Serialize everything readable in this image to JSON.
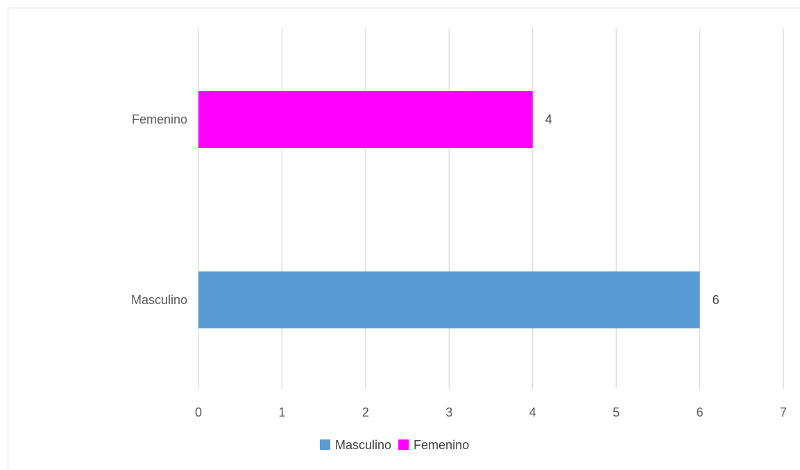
{
  "chart_data": {
    "type": "bar",
    "orientation": "horizontal",
    "categories": [
      "Femenino",
      "Masculino"
    ],
    "series": [
      {
        "name": "Masculino",
        "color": "#5b9bd5",
        "values": [
          null,
          6
        ]
      },
      {
        "name": "Femenino",
        "color": "#ff00ff",
        "values": [
          4,
          null
        ]
      }
    ],
    "data_labels": [
      "4",
      "6"
    ],
    "xlim": [
      0,
      7
    ],
    "x_ticks": [
      "0",
      "1",
      "2",
      "3",
      "4",
      "5",
      "6",
      "7"
    ],
    "grid": "vertical",
    "legend": {
      "position": "bottom",
      "entries": [
        {
          "label": "Masculino",
          "color": "#5b9bd5"
        },
        {
          "label": "Femenino",
          "color": "#ff00ff"
        }
      ]
    }
  }
}
